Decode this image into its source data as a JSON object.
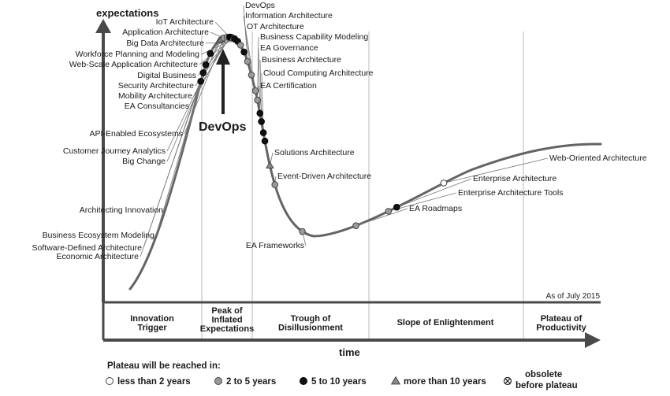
{
  "chart_data": {
    "type": "line",
    "title": "",
    "ylabel": "expectations",
    "xlabel": "time",
    "as_of": "As of July 2015",
    "annotation": "DevOps",
    "phases": [
      "Innovation Trigger",
      "Peak of Inflated Expectations",
      "Trough of Disillusionment",
      "Slope of Enlightenment",
      "Plateau of Productivity"
    ],
    "legend_title": "Plateau will be reached in:",
    "legend": [
      {
        "key": "lt2",
        "label": "less than 2 years",
        "fill": "#ffffff"
      },
      {
        "key": "2to5",
        "label": "2 to 5 years",
        "fill": "#9a9a9a"
      },
      {
        "key": "5to10",
        "label": "5 to 10 years",
        "fill": "#111111"
      },
      {
        "key": "gt10",
        "label": "more than 10 years",
        "fill": "#8a8a8a"
      },
      {
        "key": "obsolete",
        "label": "obsolete before plateau",
        "fill": "#ffffff"
      }
    ],
    "points": [
      {
        "label": "Economic Architecture",
        "x": 0.196,
        "cat": "5to10"
      },
      {
        "label": "Software-Defined Architecture",
        "x": 0.201,
        "cat": "5to10"
      },
      {
        "label": "Business Ecosystem Modeling",
        "x": 0.206,
        "cat": "5to10"
      },
      {
        "label": "Architecting Innovation",
        "x": 0.215,
        "cat": "5to10"
      },
      {
        "label": "Big Change",
        "x": 0.233,
        "cat": "gt10"
      },
      {
        "label": "Customer Journey Analytics",
        "x": 0.237,
        "cat": "gt10"
      },
      {
        "label": "API-Enabled Ecosystems",
        "x": 0.242,
        "cat": "2to5"
      },
      {
        "label": "EA Consultancies",
        "x": 0.249,
        "cat": "2to5"
      },
      {
        "label": "Mobility Architecture",
        "x": 0.254,
        "cat": "5to10"
      },
      {
        "label": "Security Architecture",
        "x": 0.256,
        "cat": "5to10"
      },
      {
        "label": "Digital Business",
        "x": 0.258,
        "cat": "5to10"
      },
      {
        "label": "Web-Scale Application Architecture",
        "x": 0.261,
        "cat": "gt10"
      },
      {
        "label": "Workforce Planning and Modeling",
        "x": 0.264,
        "cat": "5to10"
      },
      {
        "label": "Big Data Architecture",
        "x": 0.27,
        "cat": "5to10"
      },
      {
        "label": "Application Architecture",
        "x": 0.276,
        "cat": "2to5"
      },
      {
        "label": "IoT Architecture",
        "x": 0.283,
        "cat": "5to10"
      },
      {
        "label": "DevOps",
        "x": 0.29,
        "cat": "2to5"
      },
      {
        "label": "Information Architecture",
        "x": 0.298,
        "cat": "2to5"
      },
      {
        "label": "OT Architecture",
        "x": 0.306,
        "cat": "2to5"
      },
      {
        "label": "Business Capability Modeling",
        "x": 0.31,
        "cat": "2to5"
      },
      {
        "label": "EA Governance",
        "x": 0.315,
        "cat": "5to10"
      },
      {
        "label": "Business Architecture",
        "x": 0.318,
        "cat": "5to10"
      },
      {
        "label": "Cloud Computing Architecture",
        "x": 0.322,
        "cat": "5to10"
      },
      {
        "label": "EA Certification",
        "x": 0.325,
        "cat": "5to10"
      },
      {
        "label": "Solutions Architecture",
        "x": 0.335,
        "cat": "gt10"
      },
      {
        "label": "Event-Driven Architecture",
        "x": 0.345,
        "cat": "2to5"
      },
      {
        "label": "EA Frameworks",
        "x": 0.4,
        "cat": "2to5"
      },
      {
        "label": "EA Roadmaps",
        "x": 0.508,
        "cat": "2to5"
      },
      {
        "label": "Enterprise Architecture Tools",
        "x": 0.573,
        "cat": "2to5"
      },
      {
        "label": "Enterprise Architecture",
        "x": 0.59,
        "cat": "5to10"
      },
      {
        "label": "Web-Oriented Architecture",
        "x": 0.685,
        "cat": "lt2"
      }
    ]
  }
}
